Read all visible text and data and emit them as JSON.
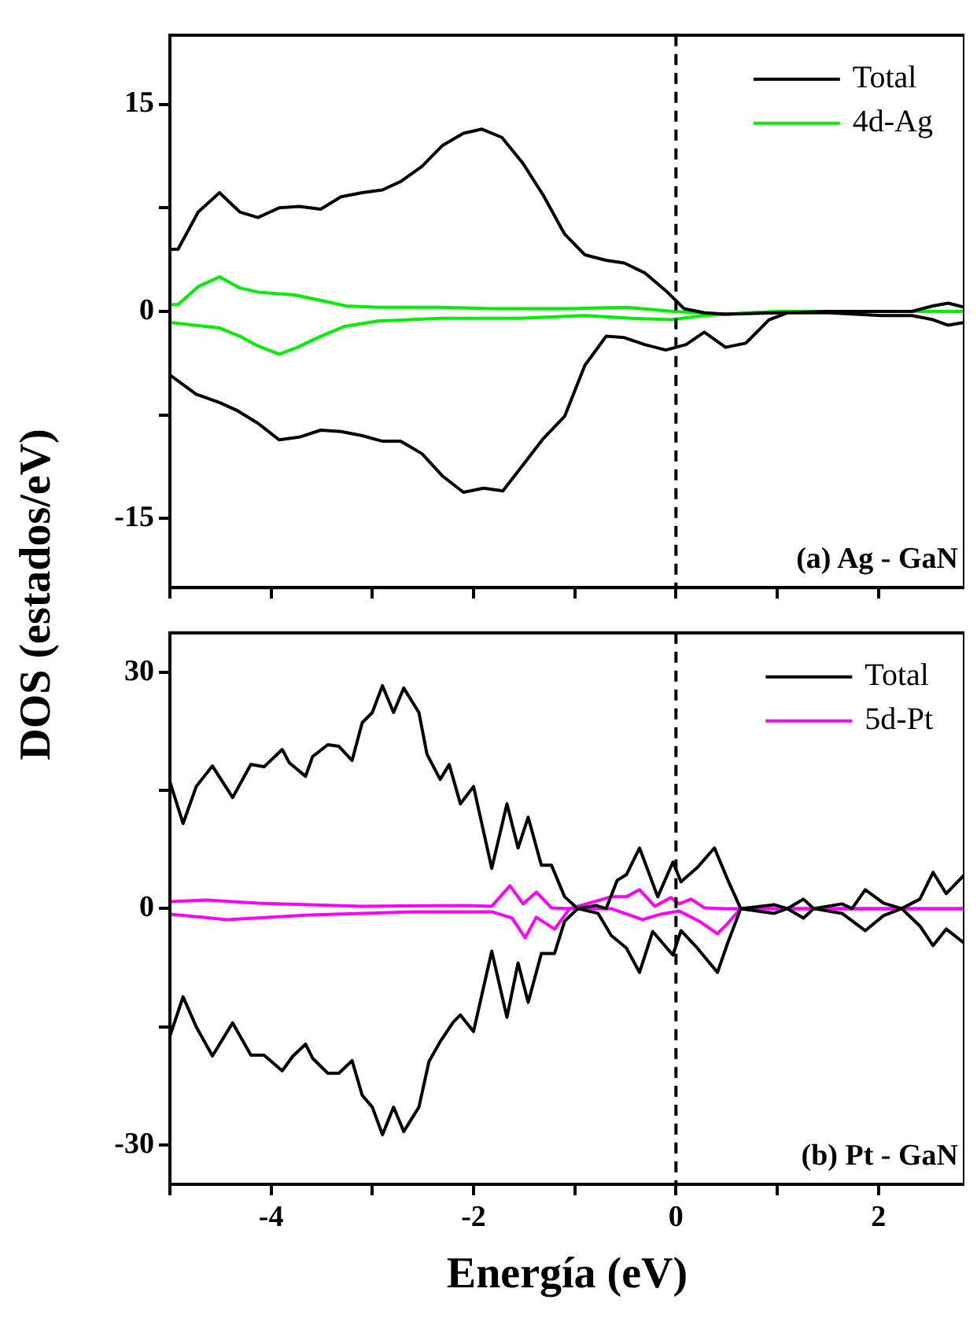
{
  "chart_data": [
    {
      "type": "line",
      "ylabel": "DOS (estados/eV)",
      "xlim": [
        -5,
        2.85
      ],
      "xticks": [
        {
          "value": -5,
          "label": null
        },
        {
          "value": -4,
          "label": null
        },
        {
          "value": -3,
          "label": null
        },
        {
          "value": -2,
          "label": null
        },
        {
          "value": -1,
          "label": null
        },
        {
          "value": 0,
          "label": null
        },
        {
          "value": 1,
          "label": null
        },
        {
          "value": 2,
          "label": null
        }
      ],
      "ylim": [
        -20,
        20
      ],
      "yticks": [
        -15,
        {
          "value": -7.5,
          "label": null
        },
        0,
        {
          "value": 7.5,
          "label": null
        },
        15
      ],
      "tick_labels": "y",
      "grid": false,
      "legend": "top right",
      "marker": "none",
      "annotations": [
        {
          "text": "(a) Ag - GaN"
        }
      ],
      "ref_lines": [
        {
          "axis": "x",
          "value": 0,
          "line_style": "dashed",
          "color": "#000000"
        }
      ],
      "series": [
        {
          "name": "Total",
          "color": "#000000",
          "x": [
            -5,
            -4.92,
            -4.72,
            -4.51,
            -4.31,
            -4.13,
            -3.92,
            -3.72,
            -3.51,
            -3.31,
            -3.1,
            -2.9,
            -2.72,
            -2.51,
            -2.31,
            -2.1,
            -1.92,
            -1.72,
            -1.51,
            -1.31,
            -1.1,
            -0.9,
            -0.69,
            -0.51,
            -0.31,
            -0.1,
            0.08,
            0.28,
            0.49,
            1.0,
            1.51,
            2.03,
            2.33,
            2.54,
            2.69,
            2.85
          ],
          "values": [
            4.5,
            4.5,
            7.2,
            8.6,
            7.2,
            6.8,
            7.5,
            7.6,
            7.4,
            8.3,
            8.6,
            8.8,
            9.4,
            10.5,
            12.0,
            12.9,
            13.2,
            12.6,
            10.7,
            8.4,
            5.6,
            4.1,
            3.7,
            3.5,
            2.8,
            1.5,
            0.2,
            -0.1,
            -0.2,
            -0.1,
            0,
            0,
            0,
            0.4,
            0.6,
            0.3
          ]
        },
        {
          "color": "#000000",
          "x": [
            -5,
            -4.74,
            -4.51,
            -4.33,
            -4.13,
            -3.92,
            -3.72,
            -3.51,
            -3.31,
            -3.1,
            -2.9,
            -2.72,
            -2.51,
            -2.31,
            -2.1,
            -1.9,
            -1.71,
            -1.51,
            -1.31,
            -1.1,
            -0.9,
            -0.69,
            -0.51,
            -0.31,
            -0.1,
            0.1,
            0.28,
            0.49,
            0.69,
            0.92,
            1.1,
            1.51,
            2.03,
            2.33,
            2.54,
            2.69,
            2.85
          ],
          "values": [
            -4.6,
            -6.0,
            -6.6,
            -7.2,
            -8.1,
            -9.3,
            -9.1,
            -8.6,
            -8.7,
            -9.0,
            -9.4,
            -9.4,
            -10.3,
            -11.9,
            -13.1,
            -12.8,
            -13.0,
            -11.1,
            -9.2,
            -7.6,
            -3.9,
            -1.8,
            -1.9,
            -2.4,
            -2.8,
            -2.4,
            -1.5,
            -2.6,
            -2.3,
            -0.6,
            -0.1,
            -0.1,
            -0.3,
            -0.3,
            -0.6,
            -1.0,
            -0.8
          ]
        },
        {
          "name": "4d-Ag",
          "color": "#00ee00",
          "x": [
            -5,
            -4.92,
            -4.72,
            -4.51,
            -4.31,
            -4.13,
            -3.77,
            -3.51,
            -3.26,
            -2.95,
            -2.33,
            -1.82,
            -1.05,
            -0.49,
            -0.03,
            0.49,
            1.0,
            2.85
          ],
          "values": [
            0.5,
            0.5,
            1.8,
            2.5,
            1.7,
            1.4,
            1.2,
            0.8,
            0.4,
            0.3,
            0.3,
            0.2,
            0.2,
            0.3,
            0,
            -0.2,
            0,
            0
          ]
        },
        {
          "color": "#00ee00",
          "x": [
            -5,
            -4.51,
            -4.31,
            -4.13,
            -3.92,
            -3.74,
            -3.51,
            -3.28,
            -2.95,
            -2.33,
            -1.56,
            -0.9,
            -0.44,
            -0.05,
            0.28,
            1.0,
            2.85
          ],
          "values": [
            -0.8,
            -1.2,
            -1.8,
            -2.5,
            -3.1,
            -2.6,
            -1.8,
            -1.1,
            -0.7,
            -0.5,
            -0.5,
            -0.3,
            -0.5,
            -0.6,
            -0.3,
            0,
            0
          ]
        }
      ]
    },
    {
      "type": "line",
      "xlabel": "Energía (eV)",
      "xlim": [
        -5,
        2.85
      ],
      "xticks": [
        {
          "value": -5,
          "label": null
        },
        -4,
        {
          "value": -3,
          "label": null
        },
        -2,
        {
          "value": -1,
          "label": null
        },
        0,
        {
          "value": 1,
          "label": null
        },
        2
      ],
      "ylim": [
        -35,
        35
      ],
      "yticks": [
        -30,
        {
          "value": -15,
          "label": null
        },
        0,
        {
          "value": 15,
          "label": null
        },
        30
      ],
      "grid": false,
      "legend": "top right",
      "marker": "none",
      "annotations": [
        {
          "text": "(b) Pt - GaN"
        }
      ],
      "ref_lines": [
        {
          "axis": "x",
          "value": 0,
          "line_style": "dashed",
          "color": "#000000"
        }
      ],
      "series": [
        {
          "name": "Total",
          "color": "#000000",
          "x": [
            -5,
            -4.87,
            -4.74,
            -4.58,
            -4.38,
            -4.2,
            -4.07,
            -3.89,
            -3.82,
            -3.66,
            -3.59,
            -3.44,
            -3.33,
            -3.2,
            -3.1,
            -3.0,
            -2.9,
            -2.79,
            -2.69,
            -2.54,
            -2.46,
            -2.33,
            -2.24,
            -2.13,
            -2.0,
            -1.82,
            -1.67,
            -1.56,
            -1.46,
            -1.33,
            -1.23,
            -1.1,
            -0.97,
            -0.79,
            -0.69,
            -0.58,
            -0.49,
            -0.36,
            -0.18,
            -0.03,
            0.05,
            0.21,
            0.38,
            0.51,
            0.64,
            0.97,
            1.1,
            1.26,
            1.36,
            1.64,
            1.74,
            1.87,
            2.05,
            2.23,
            2.41,
            2.54,
            2.67,
            2.85
          ],
          "values": [
            16.1,
            10.8,
            15.5,
            18.1,
            14.1,
            18.3,
            18.0,
            20.2,
            18.5,
            16.8,
            19.3,
            20.8,
            20.6,
            18.8,
            23.6,
            24.9,
            28.3,
            24.9,
            28.0,
            24.9,
            19.6,
            16.4,
            18.3,
            13.3,
            15.5,
            5.1,
            13.3,
            7.7,
            11.6,
            5.5,
            5.5,
            1.5,
            0,
            0.4,
            0,
            3.6,
            4.3,
            7.7,
            1.5,
            5.9,
            3.4,
            5.2,
            7.7,
            3.7,
            0,
            0.5,
            0,
            1.2,
            0,
            0.6,
            0,
            2.4,
            0.7,
            0,
            1.2,
            4.6,
            1.9,
            4.3
          ]
        },
        {
          "color": "#000000",
          "x": [
            -5,
            -4.87,
            -4.74,
            -4.58,
            -4.38,
            -4.2,
            -4.07,
            -3.89,
            -3.79,
            -3.66,
            -3.59,
            -3.44,
            -3.33,
            -3.2,
            -3.1,
            -3.0,
            -2.9,
            -2.79,
            -2.69,
            -2.54,
            -2.44,
            -2.33,
            -2.2,
            -2.13,
            -2.0,
            -1.82,
            -1.67,
            -1.56,
            -1.46,
            -1.33,
            -1.2,
            -1.1,
            -0.97,
            -0.77,
            -0.64,
            -0.49,
            -0.36,
            -0.23,
            -0.03,
            0.05,
            0.21,
            0.41,
            0.51,
            0.64,
            0.97,
            1.1,
            1.26,
            1.36,
            1.64,
            1.87,
            2.05,
            2.23,
            2.41,
            2.54,
            2.67,
            2.85
          ],
          "values": [
            -16.2,
            -11.2,
            -15.0,
            -18.7,
            -14.5,
            -18.6,
            -18.6,
            -20.6,
            -18.8,
            -17.2,
            -19.0,
            -20.9,
            -20.9,
            -19.3,
            -23.7,
            -25.2,
            -28.7,
            -25.2,
            -28.3,
            -25.2,
            -19.4,
            -16.9,
            -14.4,
            -13.5,
            -15.6,
            -5.4,
            -13.8,
            -6.9,
            -11.9,
            -5.7,
            -5.7,
            -1.6,
            0,
            -0.6,
            -3.4,
            -5.0,
            -8.1,
            -2.9,
            -5.9,
            -2.8,
            -5.0,
            -8.1,
            -4.4,
            0,
            -0.6,
            0,
            -1.2,
            0,
            -0.6,
            -2.8,
            -0.9,
            0,
            -2.2,
            -4.7,
            -2.6,
            -4.4
          ]
        },
        {
          "name": "5d-Pt",
          "color": "#ff00ff",
          "x": [
            -5,
            -4.64,
            -4.13,
            -3.1,
            -2.08,
            -1.82,
            -1.64,
            -1.51,
            -1.38,
            -1.23,
            -1.05,
            -0.64,
            -0.49,
            -0.36,
            -0.21,
            -0.05,
            0.03,
            0.15,
            0.28,
            0.49,
            2.85
          ],
          "values": [
            0.9,
            1.1,
            0.7,
            0.3,
            0.4,
            0.3,
            2.9,
            0.6,
            2.1,
            0.1,
            0,
            1.5,
            1.5,
            2.4,
            0.3,
            1.4,
            0.6,
            1.2,
            0.1,
            0,
            0
          ]
        },
        {
          "color": "#ff00ff",
          "x": [
            -5,
            -4.44,
            -3.62,
            -2.59,
            -1.82,
            -1.62,
            -1.49,
            -1.38,
            -1.2,
            -1.05,
            -0.64,
            -0.33,
            -0.15,
            0.03,
            0.23,
            0.41,
            0.51,
            0.64,
            2.85
          ],
          "values": [
            -0.7,
            -1.4,
            -0.8,
            -0.4,
            -0.4,
            -1.2,
            -3.7,
            -1.1,
            -2.6,
            0,
            0,
            -1.4,
            -0.7,
            -0.3,
            -1.6,
            -3.2,
            -1.9,
            0,
            0
          ]
        }
      ]
    }
  ]
}
